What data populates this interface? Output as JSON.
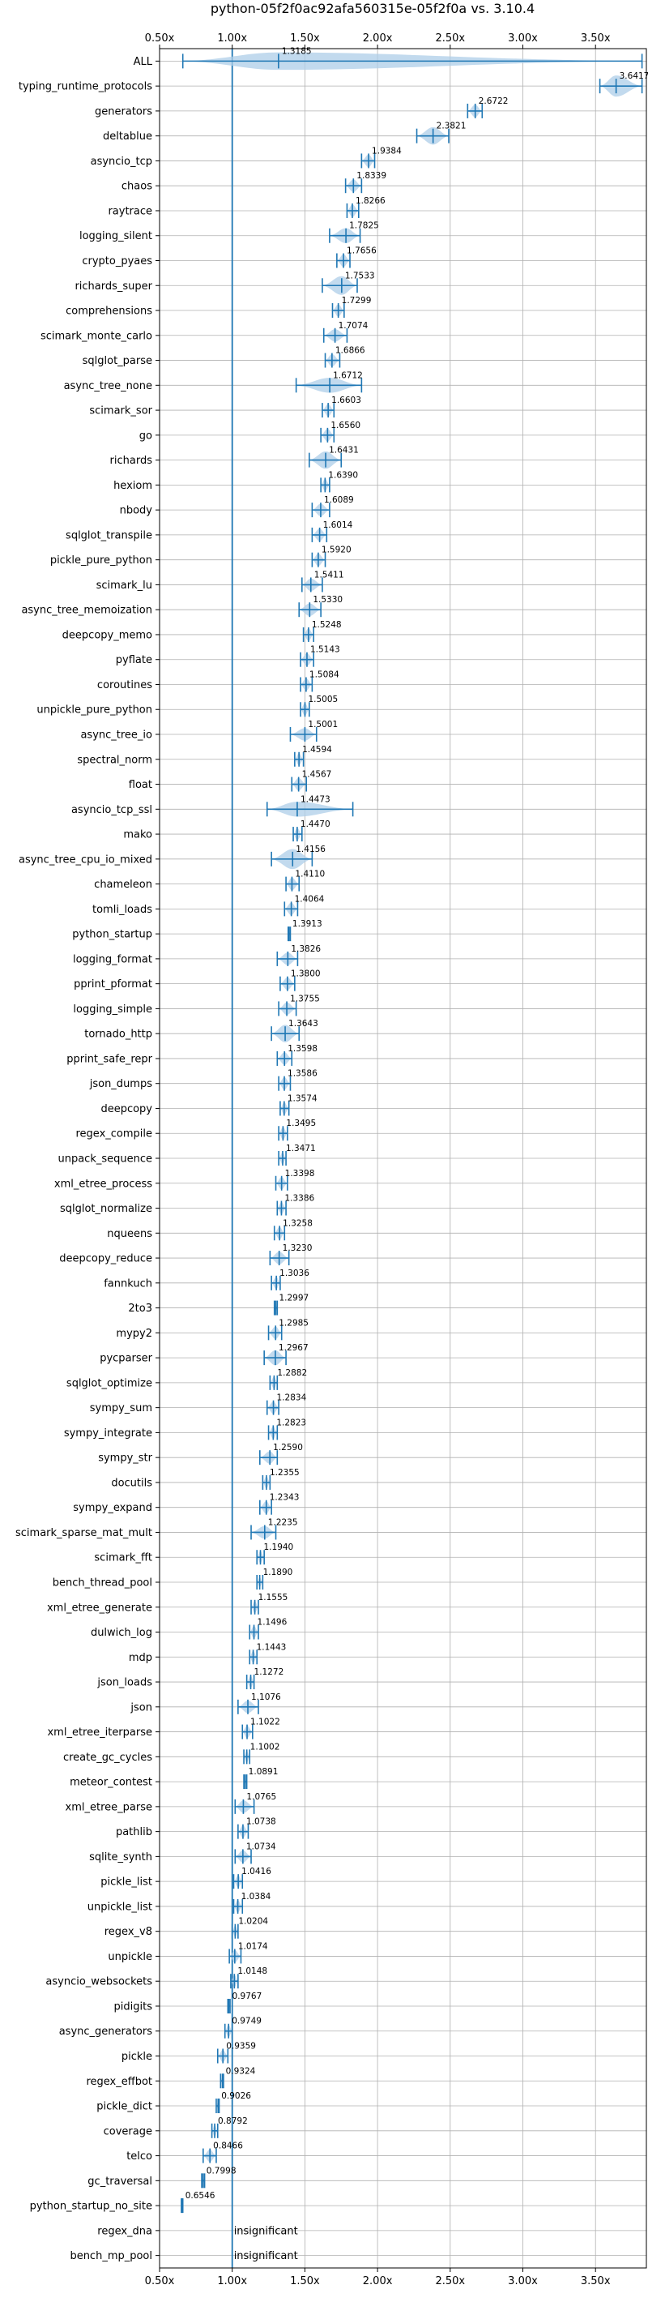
{
  "chart_data": {
    "type": "violin",
    "title": "python-05f2f0ac92afa560315e-05f2f0a vs. 3.10.4",
    "xlabel": "",
    "ylabel": "",
    "xlim": [
      0.5,
      3.85
    ],
    "xticks": [
      0.5,
      1.0,
      1.5,
      2.0,
      2.5,
      3.0,
      3.5
    ],
    "xtick_labels": [
      "0.50x",
      "1.00x",
      "1.50x",
      "2.00x",
      "2.50x",
      "3.00x",
      "3.50x"
    ],
    "reference_line": 1.0,
    "grid": true,
    "color": "#1f77b4",
    "fill_color": "#aecde8",
    "insignificant_label": "insignificant",
    "benchmarks": [
      {
        "name": "ALL",
        "value": 1.3185,
        "label": "1.3185",
        "lo": 0.66,
        "hi": 3.82,
        "w": 0.7
      },
      {
        "name": "typing_runtime_protocols",
        "value": 3.6417,
        "label": "3.6417",
        "lo": 3.53,
        "hi": 3.82,
        "w": 0.85
      },
      {
        "name": "generators",
        "value": 2.6722,
        "label": "2.6722",
        "lo": 2.62,
        "hi": 2.72,
        "w": 0.5
      },
      {
        "name": "deltablue",
        "value": 2.3821,
        "label": "2.3821",
        "lo": 2.27,
        "hi": 2.49,
        "w": 0.7
      },
      {
        "name": "asyncio_tcp",
        "value": 1.9384,
        "label": "1.9384",
        "lo": 1.89,
        "hi": 1.98,
        "w": 0.5
      },
      {
        "name": "chaos",
        "value": 1.8339,
        "label": "1.8339",
        "lo": 1.78,
        "hi": 1.89,
        "w": 0.5
      },
      {
        "name": "raytrace",
        "value": 1.8266,
        "label": "1.8266",
        "lo": 1.79,
        "hi": 1.87,
        "w": 0.5
      },
      {
        "name": "logging_silent",
        "value": 1.7825,
        "label": "1.7825",
        "lo": 1.67,
        "hi": 1.88,
        "w": 0.6
      },
      {
        "name": "crypto_pyaes",
        "value": 1.7656,
        "label": "1.7656",
        "lo": 1.72,
        "hi": 1.81,
        "w": 0.5
      },
      {
        "name": "richards_super",
        "value": 1.7533,
        "label": "1.7533",
        "lo": 1.62,
        "hi": 1.86,
        "w": 0.75
      },
      {
        "name": "comprehensions",
        "value": 1.7299,
        "label": "1.7299",
        "lo": 1.69,
        "hi": 1.77,
        "w": 0.5
      },
      {
        "name": "scimark_monte_carlo",
        "value": 1.7074,
        "label": "1.7074",
        "lo": 1.63,
        "hi": 1.79,
        "w": 0.5
      },
      {
        "name": "sqlglot_parse",
        "value": 1.6866,
        "label": "1.6866",
        "lo": 1.64,
        "hi": 1.74,
        "w": 0.5
      },
      {
        "name": "async_tree_none",
        "value": 1.6712,
        "label": "1.6712",
        "lo": 1.44,
        "hi": 1.89,
        "w": 0.6
      },
      {
        "name": "scimark_sor",
        "value": 1.6603,
        "label": "1.6603",
        "lo": 1.62,
        "hi": 1.7,
        "w": 0.5
      },
      {
        "name": "go",
        "value": 1.656,
        "label": "1.6560",
        "lo": 1.61,
        "hi": 1.7,
        "w": 0.5
      },
      {
        "name": "richards",
        "value": 1.6431,
        "label": "1.6431",
        "lo": 1.53,
        "hi": 1.75,
        "w": 0.7
      },
      {
        "name": "hexiom",
        "value": 1.639,
        "label": "1.6390",
        "lo": 1.61,
        "hi": 1.67,
        "w": 0.5
      },
      {
        "name": "nbody",
        "value": 1.6089,
        "label": "1.6089",
        "lo": 1.55,
        "hi": 1.67,
        "w": 0.5
      },
      {
        "name": "sqlglot_transpile",
        "value": 1.6014,
        "label": "1.6014",
        "lo": 1.55,
        "hi": 1.65,
        "w": 0.5
      },
      {
        "name": "pickle_pure_python",
        "value": 1.592,
        "label": "1.5920",
        "lo": 1.55,
        "hi": 1.64,
        "w": 0.5
      },
      {
        "name": "scimark_lu",
        "value": 1.5411,
        "label": "1.5411",
        "lo": 1.48,
        "hi": 1.62,
        "w": 0.5
      },
      {
        "name": "async_tree_memoization",
        "value": 1.533,
        "label": "1.5330",
        "lo": 1.46,
        "hi": 1.61,
        "w": 0.5
      },
      {
        "name": "deepcopy_memo",
        "value": 1.5248,
        "label": "1.5248",
        "lo": 1.49,
        "hi": 1.56,
        "w": 0.5
      },
      {
        "name": "pyflate",
        "value": 1.5143,
        "label": "1.5143",
        "lo": 1.47,
        "hi": 1.56,
        "w": 0.5
      },
      {
        "name": "coroutines",
        "value": 1.5084,
        "label": "1.5084",
        "lo": 1.47,
        "hi": 1.55,
        "w": 0.5
      },
      {
        "name": "unpickle_pure_python",
        "value": 1.5005,
        "label": "1.5005",
        "lo": 1.47,
        "hi": 1.53,
        "w": 0.5
      },
      {
        "name": "async_tree_io",
        "value": 1.5001,
        "label": "1.5001",
        "lo": 1.4,
        "hi": 1.58,
        "w": 0.5
      },
      {
        "name": "spectral_norm",
        "value": 1.4594,
        "label": "1.4594",
        "lo": 1.43,
        "hi": 1.49,
        "w": 0.5
      },
      {
        "name": "float",
        "value": 1.4567,
        "label": "1.4567",
        "lo": 1.41,
        "hi": 1.51,
        "w": 0.5
      },
      {
        "name": "asyncio_tcp_ssl",
        "value": 1.4473,
        "label": "1.4473",
        "lo": 1.24,
        "hi": 1.83,
        "w": 0.6
      },
      {
        "name": "mako",
        "value": 1.447,
        "label": "1.4470",
        "lo": 1.42,
        "hi": 1.48,
        "w": 0.5
      },
      {
        "name": "async_tree_cpu_io_mixed",
        "value": 1.4156,
        "label": "1.4156",
        "lo": 1.27,
        "hi": 1.55,
        "w": 0.8
      },
      {
        "name": "chameleon",
        "value": 1.411,
        "label": "1.4110",
        "lo": 1.37,
        "hi": 1.46,
        "w": 0.5
      },
      {
        "name": "tomli_loads",
        "value": 1.4064,
        "label": "1.4064",
        "lo": 1.36,
        "hi": 1.45,
        "w": 0.5
      },
      {
        "name": "python_startup",
        "value": 1.3913,
        "label": "1.3913",
        "lo": 1.385,
        "hi": 1.4,
        "w": 0.3
      },
      {
        "name": "logging_format",
        "value": 1.3826,
        "label": "1.3826",
        "lo": 1.31,
        "hi": 1.45,
        "w": 0.5
      },
      {
        "name": "pprint_pformat",
        "value": 1.38,
        "label": "1.3800",
        "lo": 1.33,
        "hi": 1.43,
        "w": 0.5
      },
      {
        "name": "logging_simple",
        "value": 1.3755,
        "label": "1.3755",
        "lo": 1.32,
        "hi": 1.44,
        "w": 0.5
      },
      {
        "name": "tornado_http",
        "value": 1.3643,
        "label": "1.3643",
        "lo": 1.27,
        "hi": 1.46,
        "w": 0.7
      },
      {
        "name": "pprint_safe_repr",
        "value": 1.3598,
        "label": "1.3598",
        "lo": 1.31,
        "hi": 1.41,
        "w": 0.5
      },
      {
        "name": "json_dumps",
        "value": 1.3586,
        "label": "1.3586",
        "lo": 1.32,
        "hi": 1.4,
        "w": 0.5
      },
      {
        "name": "deepcopy",
        "value": 1.3574,
        "label": "1.3574",
        "lo": 1.33,
        "hi": 1.39,
        "w": 0.5
      },
      {
        "name": "regex_compile",
        "value": 1.3495,
        "label": "1.3495",
        "lo": 1.32,
        "hi": 1.38,
        "w": 0.5
      },
      {
        "name": "unpack_sequence",
        "value": 1.3471,
        "label": "1.3471",
        "lo": 1.32,
        "hi": 1.37,
        "w": 0.5
      },
      {
        "name": "xml_etree_process",
        "value": 1.3398,
        "label": "1.3398",
        "lo": 1.3,
        "hi": 1.38,
        "w": 0.5
      },
      {
        "name": "sqlglot_normalize",
        "value": 1.3386,
        "label": "1.3386",
        "lo": 1.31,
        "hi": 1.37,
        "w": 0.5
      },
      {
        "name": "nqueens",
        "value": 1.3258,
        "label": "1.3258",
        "lo": 1.29,
        "hi": 1.36,
        "w": 0.5
      },
      {
        "name": "deepcopy_reduce",
        "value": 1.323,
        "label": "1.3230",
        "lo": 1.26,
        "hi": 1.39,
        "w": 0.5
      },
      {
        "name": "fannkuch",
        "value": 1.3036,
        "label": "1.3036",
        "lo": 1.27,
        "hi": 1.33,
        "w": 0.5
      },
      {
        "name": "2to3",
        "value": 1.2997,
        "label": "1.2997",
        "lo": 1.29,
        "hi": 1.31,
        "w": 0.3
      },
      {
        "name": "mypy2",
        "value": 1.2985,
        "label": "1.2985",
        "lo": 1.25,
        "hi": 1.34,
        "w": 0.5
      },
      {
        "name": "pycparser",
        "value": 1.2967,
        "label": "1.2967",
        "lo": 1.22,
        "hi": 1.37,
        "w": 0.6
      },
      {
        "name": "sqlglot_optimize",
        "value": 1.2882,
        "label": "1.2882",
        "lo": 1.26,
        "hi": 1.31,
        "w": 0.5
      },
      {
        "name": "sympy_sum",
        "value": 1.2834,
        "label": "1.2834",
        "lo": 1.24,
        "hi": 1.32,
        "w": 0.5
      },
      {
        "name": "sympy_integrate",
        "value": 1.2823,
        "label": "1.2823",
        "lo": 1.25,
        "hi": 1.31,
        "w": 0.5
      },
      {
        "name": "sympy_str",
        "value": 1.259,
        "label": "1.2590",
        "lo": 1.19,
        "hi": 1.31,
        "w": 0.5
      },
      {
        "name": "docutils",
        "value": 1.2355,
        "label": "1.2355",
        "lo": 1.21,
        "hi": 1.26,
        "w": 0.5
      },
      {
        "name": "sympy_expand",
        "value": 1.2343,
        "label": "1.2343",
        "lo": 1.19,
        "hi": 1.27,
        "w": 0.5
      },
      {
        "name": "scimark_sparse_mat_mult",
        "value": 1.2235,
        "label": "1.2235",
        "lo": 1.13,
        "hi": 1.3,
        "w": 0.5
      },
      {
        "name": "scimark_fft",
        "value": 1.194,
        "label": "1.1940",
        "lo": 1.17,
        "hi": 1.22,
        "w": 0.5
      },
      {
        "name": "bench_thread_pool",
        "value": 1.189,
        "label": "1.1890",
        "lo": 1.17,
        "hi": 1.21,
        "w": 0.4
      },
      {
        "name": "xml_etree_generate",
        "value": 1.1555,
        "label": "1.1555",
        "lo": 1.13,
        "hi": 1.18,
        "w": 0.5
      },
      {
        "name": "dulwich_log",
        "value": 1.1496,
        "label": "1.1496",
        "lo": 1.12,
        "hi": 1.18,
        "w": 0.5
      },
      {
        "name": "mdp",
        "value": 1.1443,
        "label": "1.1443",
        "lo": 1.12,
        "hi": 1.17,
        "w": 0.5
      },
      {
        "name": "json_loads",
        "value": 1.1272,
        "label": "1.1272",
        "lo": 1.1,
        "hi": 1.15,
        "w": 0.5
      },
      {
        "name": "json",
        "value": 1.1076,
        "label": "1.1076",
        "lo": 1.04,
        "hi": 1.18,
        "w": 0.5
      },
      {
        "name": "xml_etree_iterparse",
        "value": 1.1022,
        "label": "1.1022",
        "lo": 1.07,
        "hi": 1.14,
        "w": 0.5
      },
      {
        "name": "create_gc_cycles",
        "value": 1.1002,
        "label": "1.1002",
        "lo": 1.08,
        "hi": 1.12,
        "w": 0.5
      },
      {
        "name": "meteor_contest",
        "value": 1.0891,
        "label": "1.0891",
        "lo": 1.08,
        "hi": 1.1,
        "w": 0.3
      },
      {
        "name": "xml_etree_parse",
        "value": 1.0765,
        "label": "1.0765",
        "lo": 1.02,
        "hi": 1.15,
        "w": 0.5
      },
      {
        "name": "pathlib",
        "value": 1.0738,
        "label": "1.0738",
        "lo": 1.04,
        "hi": 1.11,
        "w": 0.5
      },
      {
        "name": "sqlite_synth",
        "value": 1.0734,
        "label": "1.0734",
        "lo": 1.02,
        "hi": 1.13,
        "w": 0.5
      },
      {
        "name": "pickle_list",
        "value": 1.0416,
        "label": "1.0416",
        "lo": 1.01,
        "hi": 1.07,
        "w": 0.5
      },
      {
        "name": "unpickle_list",
        "value": 1.0384,
        "label": "1.0384",
        "lo": 1.01,
        "hi": 1.07,
        "w": 0.5
      },
      {
        "name": "regex_v8",
        "value": 1.0204,
        "label": "1.0204",
        "lo": 1.0,
        "hi": 1.04,
        "w": 0.5
      },
      {
        "name": "unpickle",
        "value": 1.0174,
        "label": "1.0174",
        "lo": 0.98,
        "hi": 1.06,
        "w": 0.5
      },
      {
        "name": "asyncio_websockets",
        "value": 1.0148,
        "label": "1.0148",
        "lo": 0.99,
        "hi": 1.04,
        "w": 0.5
      },
      {
        "name": "pidigits",
        "value": 0.9767,
        "label": "0.9767",
        "lo": 0.97,
        "hi": 0.985,
        "w": 0.3
      },
      {
        "name": "async_generators",
        "value": 0.9749,
        "label": "0.9749",
        "lo": 0.95,
        "hi": 1.0,
        "w": 0.5
      },
      {
        "name": "pickle",
        "value": 0.9359,
        "label": "0.9359",
        "lo": 0.9,
        "hi": 0.97,
        "w": 0.5
      },
      {
        "name": "regex_effbot",
        "value": 0.9324,
        "label": "0.9324",
        "lo": 0.92,
        "hi": 0.94,
        "w": 0.3
      },
      {
        "name": "pickle_dict",
        "value": 0.9026,
        "label": "0.9026",
        "lo": 0.89,
        "hi": 0.91,
        "w": 0.3
      },
      {
        "name": "coverage",
        "value": 0.8792,
        "label": "0.8792",
        "lo": 0.86,
        "hi": 0.9,
        "w": 0.5
      },
      {
        "name": "telco",
        "value": 0.8466,
        "label": "0.8466",
        "lo": 0.8,
        "hi": 0.89,
        "w": 0.5
      },
      {
        "name": "gc_traversal",
        "value": 0.7998,
        "label": "0.7998",
        "lo": 0.79,
        "hi": 0.81,
        "w": 0.3
      },
      {
        "name": "python_startup_no_site",
        "value": 0.6546,
        "label": "0.6546",
        "lo": 0.65,
        "hi": 0.66,
        "w": 0.3
      },
      {
        "name": "regex_dna",
        "value": null,
        "label": "",
        "insignificant": true
      },
      {
        "name": "bench_mp_pool",
        "value": null,
        "label": "",
        "insignificant": true
      }
    ]
  }
}
